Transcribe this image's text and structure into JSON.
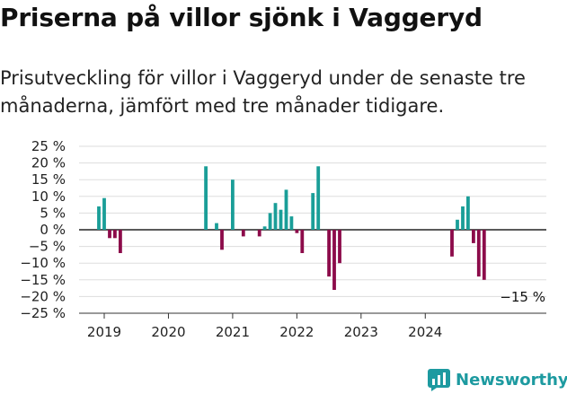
{
  "title": "Priserna på villor sjönk i Vaggeryd",
  "subtitle": "Prisutveckling för villor i Vaggeryd under de senaste tre månaderna, jämfört med tre månader tidigare.",
  "brand": {
    "name": "Newsworthy",
    "icon": "newsworthy-logo-icon"
  },
  "colors": {
    "positive": "#1a9e98",
    "negative": "#8c0b4a",
    "grid": "#dddddd",
    "zero": "#222222",
    "brand": "#1d9aa0"
  },
  "chart_data": {
    "type": "bar",
    "ylim": [
      -25,
      25
    ],
    "yticks": [
      25,
      20,
      15,
      10,
      5,
      0,
      -5,
      -10,
      -15,
      -20,
      -25
    ],
    "ytick_labels": [
      "25 %",
      "20 %",
      "15 %",
      "10 %",
      "5 %",
      "0 %",
      "−5 %",
      "−10 %",
      "−15 %",
      "−20 %",
      "−25 %"
    ],
    "x_ticks": [
      "2019",
      "2020",
      "2021",
      "2022",
      "2023",
      "2024"
    ],
    "x_tick_dates": [
      "2019-01",
      "2020-01",
      "2021-01",
      "2022-01",
      "2023-01",
      "2024-01"
    ],
    "last_value_label": "−15 %",
    "series": [
      {
        "dates": [
          "2018-12",
          "2019-01",
          "2019-02",
          "2019-03",
          "2019-04",
          "2020-08",
          "2020-10",
          "2020-11",
          "2021-01",
          "2021-03",
          "2021-06",
          "2021-07",
          "2021-08",
          "2021-09",
          "2021-10",
          "2021-11",
          "2021-12",
          "2022-01",
          "2022-02",
          "2022-04",
          "2022-05",
          "2022-07",
          "2022-08",
          "2022-09",
          "2024-06",
          "2024-07",
          "2024-08",
          "2024-09",
          "2024-10",
          "2024-11",
          "2024-12"
        ],
        "values": [
          7,
          9.5,
          -2.5,
          -2.5,
          -7,
          19,
          2,
          -6,
          15,
          -2,
          -2,
          1,
          5,
          8,
          6,
          12,
          4,
          -1,
          -7,
          11,
          19,
          -14,
          -18,
          -10,
          -8,
          3,
          7,
          10,
          -4,
          -14,
          -15
        ]
      }
    ]
  }
}
